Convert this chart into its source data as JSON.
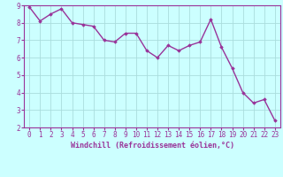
{
  "x": [
    0,
    1,
    2,
    3,
    4,
    5,
    6,
    7,
    8,
    9,
    10,
    11,
    12,
    13,
    14,
    15,
    16,
    17,
    18,
    19,
    20,
    21,
    22,
    23
  ],
  "y": [
    8.9,
    8.1,
    8.5,
    8.8,
    8.0,
    7.9,
    7.8,
    7.0,
    6.9,
    7.4,
    7.4,
    6.4,
    6.0,
    6.7,
    6.4,
    6.7,
    6.9,
    8.2,
    6.6,
    5.4,
    4.0,
    3.4,
    3.6,
    2.4
  ],
  "line_color": "#993399",
  "marker": "D",
  "marker_size": 1.8,
  "bg_color": "#ccffff",
  "grid_color": "#aadddd",
  "xlabel": "Windchill (Refroidissement éolien,°C)",
  "xlabel_color": "#993399",
  "tick_color": "#993399",
  "spine_color": "#993399",
  "ylim": [
    2,
    9
  ],
  "xlim": [
    -0.5,
    23.5
  ],
  "yticks": [
    2,
    3,
    4,
    5,
    6,
    7,
    8,
    9
  ],
  "xticks": [
    0,
    1,
    2,
    3,
    4,
    5,
    6,
    7,
    8,
    9,
    10,
    11,
    12,
    13,
    14,
    15,
    16,
    17,
    18,
    19,
    20,
    21,
    22,
    23
  ],
  "linewidth": 1.0,
  "tick_fontsize": 5.5,
  "xlabel_fontsize": 6.0
}
